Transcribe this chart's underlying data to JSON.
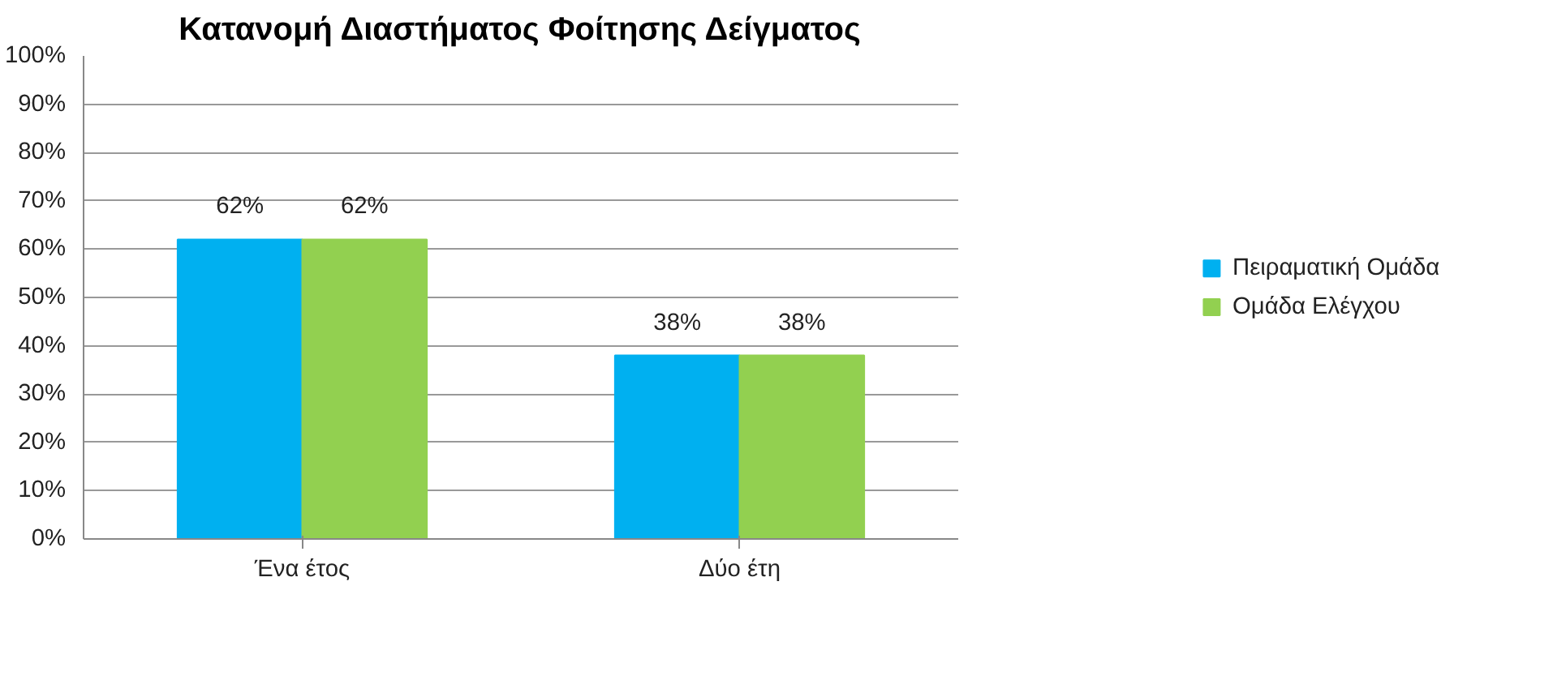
{
  "chart_data": {
    "type": "bar",
    "title": "Κατανομή Διαστήματος Φοίτησης Δείγματος",
    "categories": [
      "Ένα έτος",
      "Δύο έτη"
    ],
    "series": [
      {
        "name": "Πειραματική Ομάδα",
        "color": "#00b0f0",
        "values": [
          62,
          38
        ],
        "value_labels": [
          "62%",
          "38%"
        ]
      },
      {
        "name": "Ομάδα Ελέγχου",
        "color": "#92d050",
        "values": [
          62,
          38
        ],
        "value_labels": [
          "62%",
          "38%"
        ]
      }
    ],
    "ylim": [
      0,
      100
    ],
    "yticks": [
      {
        "value": 0,
        "label": "0%"
      },
      {
        "value": 10,
        "label": "10%"
      },
      {
        "value": 20,
        "label": "20%"
      },
      {
        "value": 30,
        "label": "30%"
      },
      {
        "value": 40,
        "label": "40%"
      },
      {
        "value": 50,
        "label": "50%"
      },
      {
        "value": 60,
        "label": "60%"
      },
      {
        "value": 70,
        "label": "70%"
      },
      {
        "value": 80,
        "label": "80%"
      },
      {
        "value": 90,
        "label": "90%"
      },
      {
        "value": 100,
        "label": "100%"
      }
    ],
    "grid": "y",
    "legend": "right"
  }
}
